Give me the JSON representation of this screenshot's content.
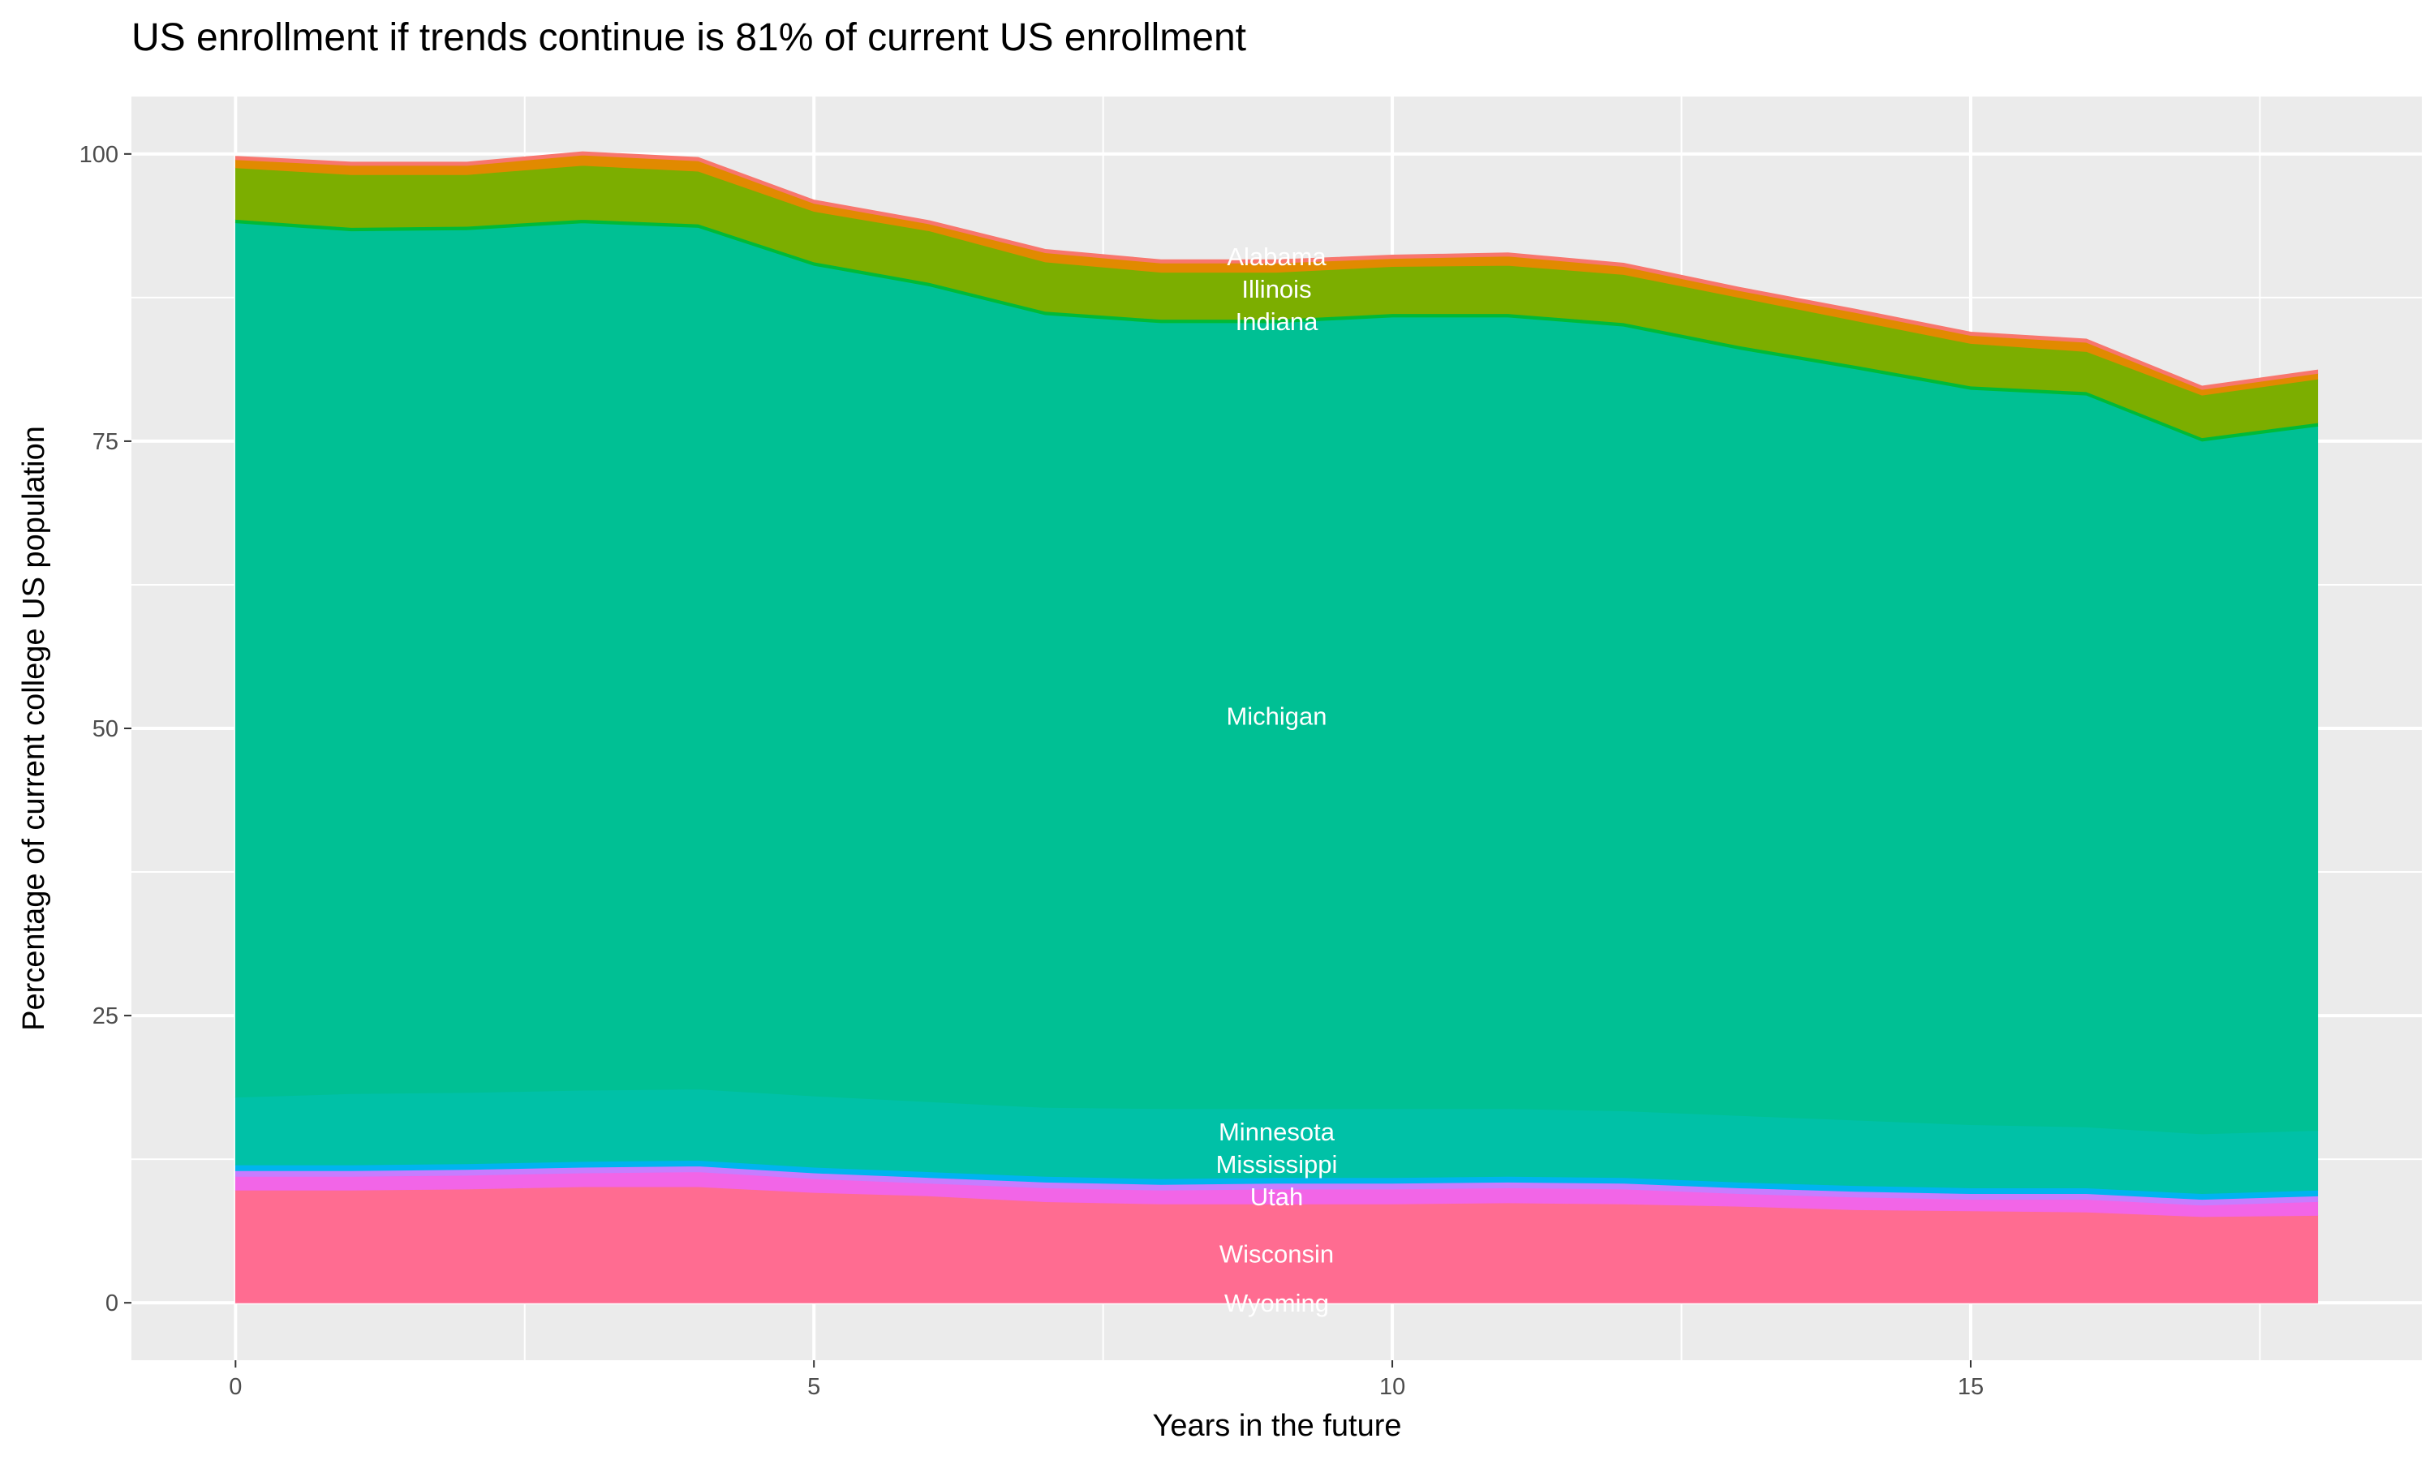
{
  "chart_data": {
    "type": "area",
    "stacked": true,
    "title": "US enrollment if trends continue is 81% of current US enrollment",
    "xlabel": "Years in the future",
    "ylabel": "Percentage of current college US population",
    "xlim": [
      -0.9,
      18.9
    ],
    "ylim": [
      -5,
      105
    ],
    "x_ticks": [
      0,
      5,
      10,
      15
    ],
    "y_ticks": [
      0,
      25,
      50,
      75,
      100
    ],
    "grid": true,
    "legend": "none",
    "label_x": 9,
    "x": [
      0,
      1,
      2,
      3,
      4,
      5,
      6,
      7,
      8,
      9,
      10,
      11,
      12,
      13,
      14,
      15,
      16,
      17,
      18
    ],
    "series": [
      {
        "name": "Wyoming",
        "color": "#FF6C91",
        "values": [
          0,
          0,
          0,
          0,
          0,
          0,
          0,
          0,
          0,
          0,
          0,
          0,
          0,
          0,
          0,
          0,
          0,
          0,
          0
        ]
      },
      {
        "name": "Wisconsin",
        "color": "#FF6C91",
        "values": [
          9.8,
          9.8,
          9.9,
          10.1,
          10.1,
          9.6,
          9.3,
          8.8,
          8.6,
          8.6,
          8.6,
          8.7,
          8.6,
          8.4,
          8.1,
          8.0,
          7.9,
          7.5,
          7.6
        ]
      },
      {
        "name": "Utah",
        "color": "#F265E7",
        "values": [
          1.2,
          1.2,
          1.2,
          1.2,
          1.3,
          1.2,
          1.1,
          1.2,
          1.2,
          1.3,
          1.3,
          1.3,
          1.3,
          1.1,
          1.1,
          1.0,
          1.1,
          1.0,
          1.2
        ]
      },
      {
        "color": "#C77CFF",
        "values": [
          0.5,
          0.5,
          0.5,
          0.5,
          0.5,
          0.5,
          0.5,
          0.5,
          0.5,
          0.5,
          0.5,
          0.5,
          0.5,
          0.5,
          0.5,
          0.5,
          0.5,
          0.5,
          0.5
        ]
      },
      {
        "name": "Mississippi",
        "color": "#00B4EF",
        "values": [
          0.5,
          0.5,
          0.5,
          0.5,
          0.5,
          0.5,
          0.5,
          0.5,
          0.5,
          0.5,
          0.5,
          0.5,
          0.5,
          0.5,
          0.5,
          0.5,
          0.5,
          0.5,
          0.5
        ]
      },
      {
        "name": "Minnesota",
        "color": "#00C1A7",
        "values": [
          5.9,
          6.2,
          6.2,
          6.2,
          6.2,
          6.2,
          6.1,
          6.0,
          6.1,
          6.0,
          6.0,
          5.9,
          5.8,
          5.8,
          5.7,
          5.5,
          5.3,
          5.2,
          5.2
        ]
      },
      {
        "name": "Michigan",
        "color": "#00C094",
        "values": [
          76.1,
          75.1,
          75.1,
          75.5,
          75.0,
          72.3,
          71.0,
          69.0,
          68.4,
          68.4,
          68.9,
          68.9,
          68.3,
          66.7,
          65.4,
          64.0,
          63.7,
          60.3,
          61.3
        ]
      },
      {
        "name": "Indiana",
        "color": "#00BA38",
        "values": [
          0.3,
          0.3,
          0.3,
          0.3,
          0.3,
          0.3,
          0.3,
          0.3,
          0.3,
          0.3,
          0.3,
          0.3,
          0.3,
          0.3,
          0.3,
          0.3,
          0.3,
          0.3,
          0.3
        ]
      },
      {
        "name": "Illinois",
        "color": "#7CAE00",
        "values": [
          4.5,
          4.6,
          4.5,
          4.7,
          4.6,
          4.4,
          4.5,
          4.3,
          4.1,
          4.1,
          4.1,
          4.2,
          4.2,
          4.2,
          3.9,
          3.7,
          3.5,
          3.7,
          3.8
        ]
      },
      {
        "color": "#E18A00",
        "values": [
          0.7,
          0.8,
          0.8,
          0.9,
          0.9,
          0.7,
          0.6,
          0.8,
          0.8,
          0.8,
          0.7,
          0.8,
          0.7,
          0.6,
          0.7,
          0.7,
          0.8,
          0.5,
          0.5
        ]
      },
      {
        "name": "Alabama",
        "color": "#F8766D",
        "values": [
          0.3,
          0.3,
          0.3,
          0.3,
          0.3,
          0.3,
          0.3,
          0.3,
          0.3,
          0.3,
          0.3,
          0.3,
          0.3,
          0.3,
          0.3,
          0.3,
          0.3,
          0.3,
          0.3
        ]
      }
    ],
    "panel_color": "#EBEBEB",
    "grid_color": "#FFFFFF"
  }
}
